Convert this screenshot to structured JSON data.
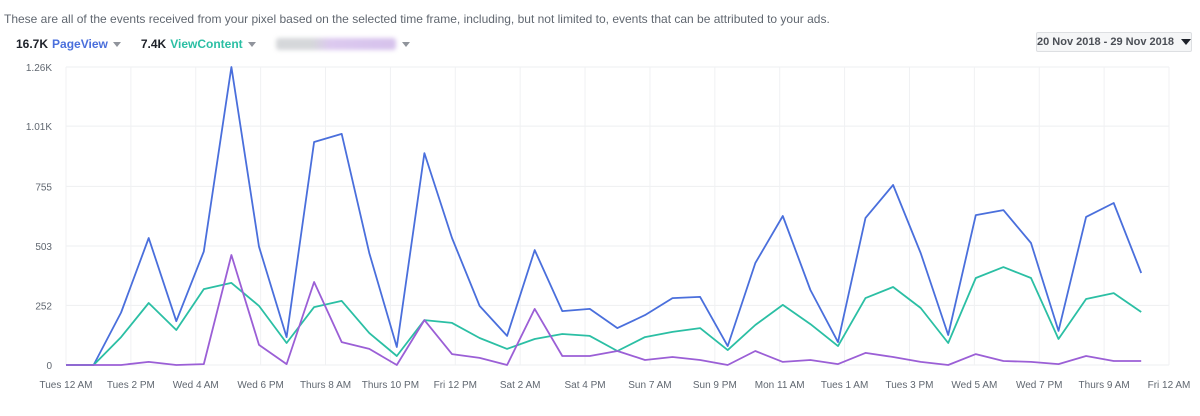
{
  "header": {
    "description": "These are all of the events received from your pixel based on the selected time frame, including, but not limited to, events that can be attributed to your ads."
  },
  "legend": [
    {
      "count": "16.7K",
      "name": "PageView",
      "color": "#4a6fdc"
    },
    {
      "count": "7.4K",
      "name": "ViewContent",
      "color": "#2bbfa4"
    },
    {
      "count": "",
      "name": "",
      "color": "#9b5fd6",
      "redacted": true
    }
  ],
  "date_range": {
    "label": "20 Nov 2018 - 29 Nov 2018"
  },
  "chart_data": {
    "type": "line",
    "title": "",
    "xlabel": "",
    "ylabel": "",
    "ylim": [
      0,
      1260
    ],
    "y_ticks": [
      {
        "value": 0,
        "label": "0"
      },
      {
        "value": 252,
        "label": "252"
      },
      {
        "value": 503,
        "label": "503"
      },
      {
        "value": 755,
        "label": "755"
      },
      {
        "value": 1010,
        "label": "1.01K"
      },
      {
        "value": 1260,
        "label": "1.26K"
      }
    ],
    "x_tick_labels": [
      "Tues 12 AM",
      "Tues 2 PM",
      "Wed 4 AM",
      "Wed 6 PM",
      "Thurs 8 AM",
      "Thurs 10 PM",
      "Fri 12 PM",
      "Sat 2 AM",
      "Sat 4 PM",
      "Sun 7 AM",
      "Sun 9 PM",
      "Mon 11 AM",
      "Tues 1 AM",
      "Tues 3 PM",
      "Wed 5 AM",
      "Wed 7 PM",
      "Thurs 9 AM",
      "Fri 12 AM"
    ],
    "grid": true,
    "legend_position": "top-left",
    "series": [
      {
        "name": "PageView",
        "color": "#4a6fdc",
        "values": [
          0,
          0,
          222,
          537,
          185,
          480,
          1260,
          500,
          118,
          943,
          977,
          473,
          76,
          896,
          537,
          250,
          123,
          486,
          228,
          237,
          156,
          211,
          283,
          288,
          80,
          431,
          630,
          317,
          97,
          622,
          761,
          473,
          127,
          634,
          655,
          516,
          144,
          626,
          685,
          389
        ]
      },
      {
        "name": "ViewContent",
        "color": "#2bbfa4",
        "values": [
          0,
          0,
          118,
          262,
          148,
          321,
          347,
          250,
          93,
          245,
          271,
          135,
          38,
          190,
          178,
          114,
          68,
          110,
          131,
          123,
          59,
          118,
          140,
          156,
          63,
          169,
          254,
          173,
          80,
          283,
          330,
          241,
          93,
          368,
          414,
          368,
          110,
          279,
          304,
          224
        ]
      },
      {
        "name": "(redacted)",
        "color": "#9b5fd6",
        "values": [
          0,
          0,
          0,
          13,
          0,
          4,
          465,
          85,
          4,
          351,
          97,
          68,
          0,
          190,
          46,
          30,
          0,
          237,
          38,
          38,
          59,
          21,
          34,
          21,
          0,
          59,
          13,
          21,
          4,
          51,
          34,
          13,
          0,
          46,
          17,
          13,
          4,
          38,
          17,
          17
        ]
      }
    ]
  }
}
